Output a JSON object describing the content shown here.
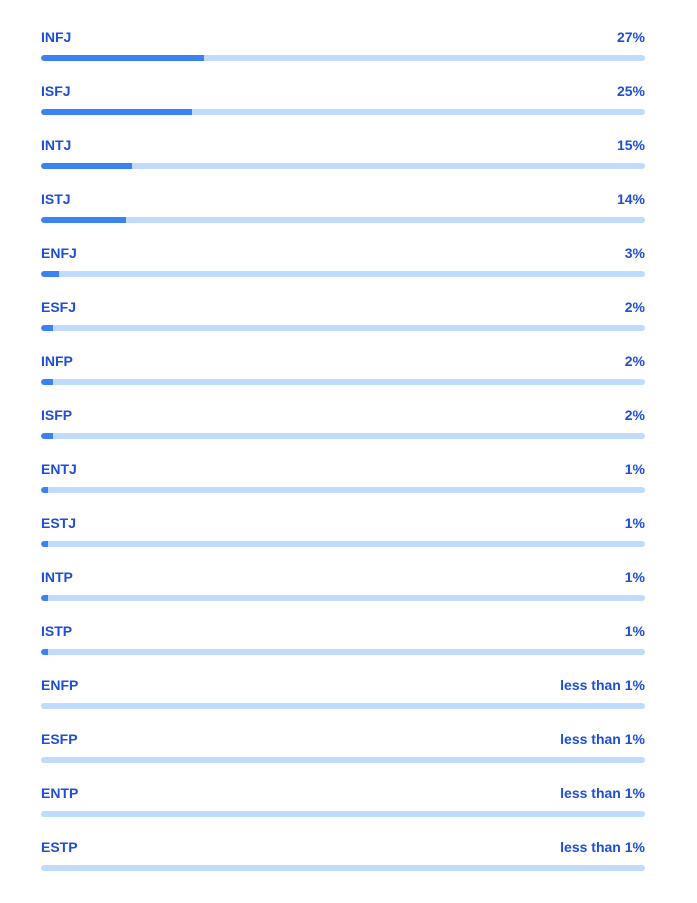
{
  "chart_data": {
    "type": "bar",
    "orientation": "horizontal",
    "colors": {
      "fill": "#3b82f6",
      "track": "#bfdbfe",
      "text": "#1d4ed8"
    },
    "xlim": [
      0,
      100
    ],
    "items": [
      {
        "category": "INFJ",
        "label": "27%",
        "value": 27
      },
      {
        "category": "ISFJ",
        "label": "25%",
        "value": 25
      },
      {
        "category": "INTJ",
        "label": "15%",
        "value": 15
      },
      {
        "category": "ISTJ",
        "label": "14%",
        "value": 14
      },
      {
        "category": "ENFJ",
        "label": "3%",
        "value": 3
      },
      {
        "category": "ESFJ",
        "label": "2%",
        "value": 2
      },
      {
        "category": "INFP",
        "label": "2%",
        "value": 2
      },
      {
        "category": "ISFP",
        "label": "2%",
        "value": 2
      },
      {
        "category": "ENTJ",
        "label": "1%",
        "value": 1
      },
      {
        "category": "ESTJ",
        "label": "1%",
        "value": 1
      },
      {
        "category": "INTP",
        "label": "1%",
        "value": 1
      },
      {
        "category": "ISTP",
        "label": "1%",
        "value": 1
      },
      {
        "category": "ENFP",
        "label": "less than 1%",
        "value": 0
      },
      {
        "category": "ESFP",
        "label": "less than 1%",
        "value": 0
      },
      {
        "category": "ENTP",
        "label": "less than 1%",
        "value": 0
      },
      {
        "category": "ESTP",
        "label": "less than 1%",
        "value": 0
      }
    ]
  }
}
